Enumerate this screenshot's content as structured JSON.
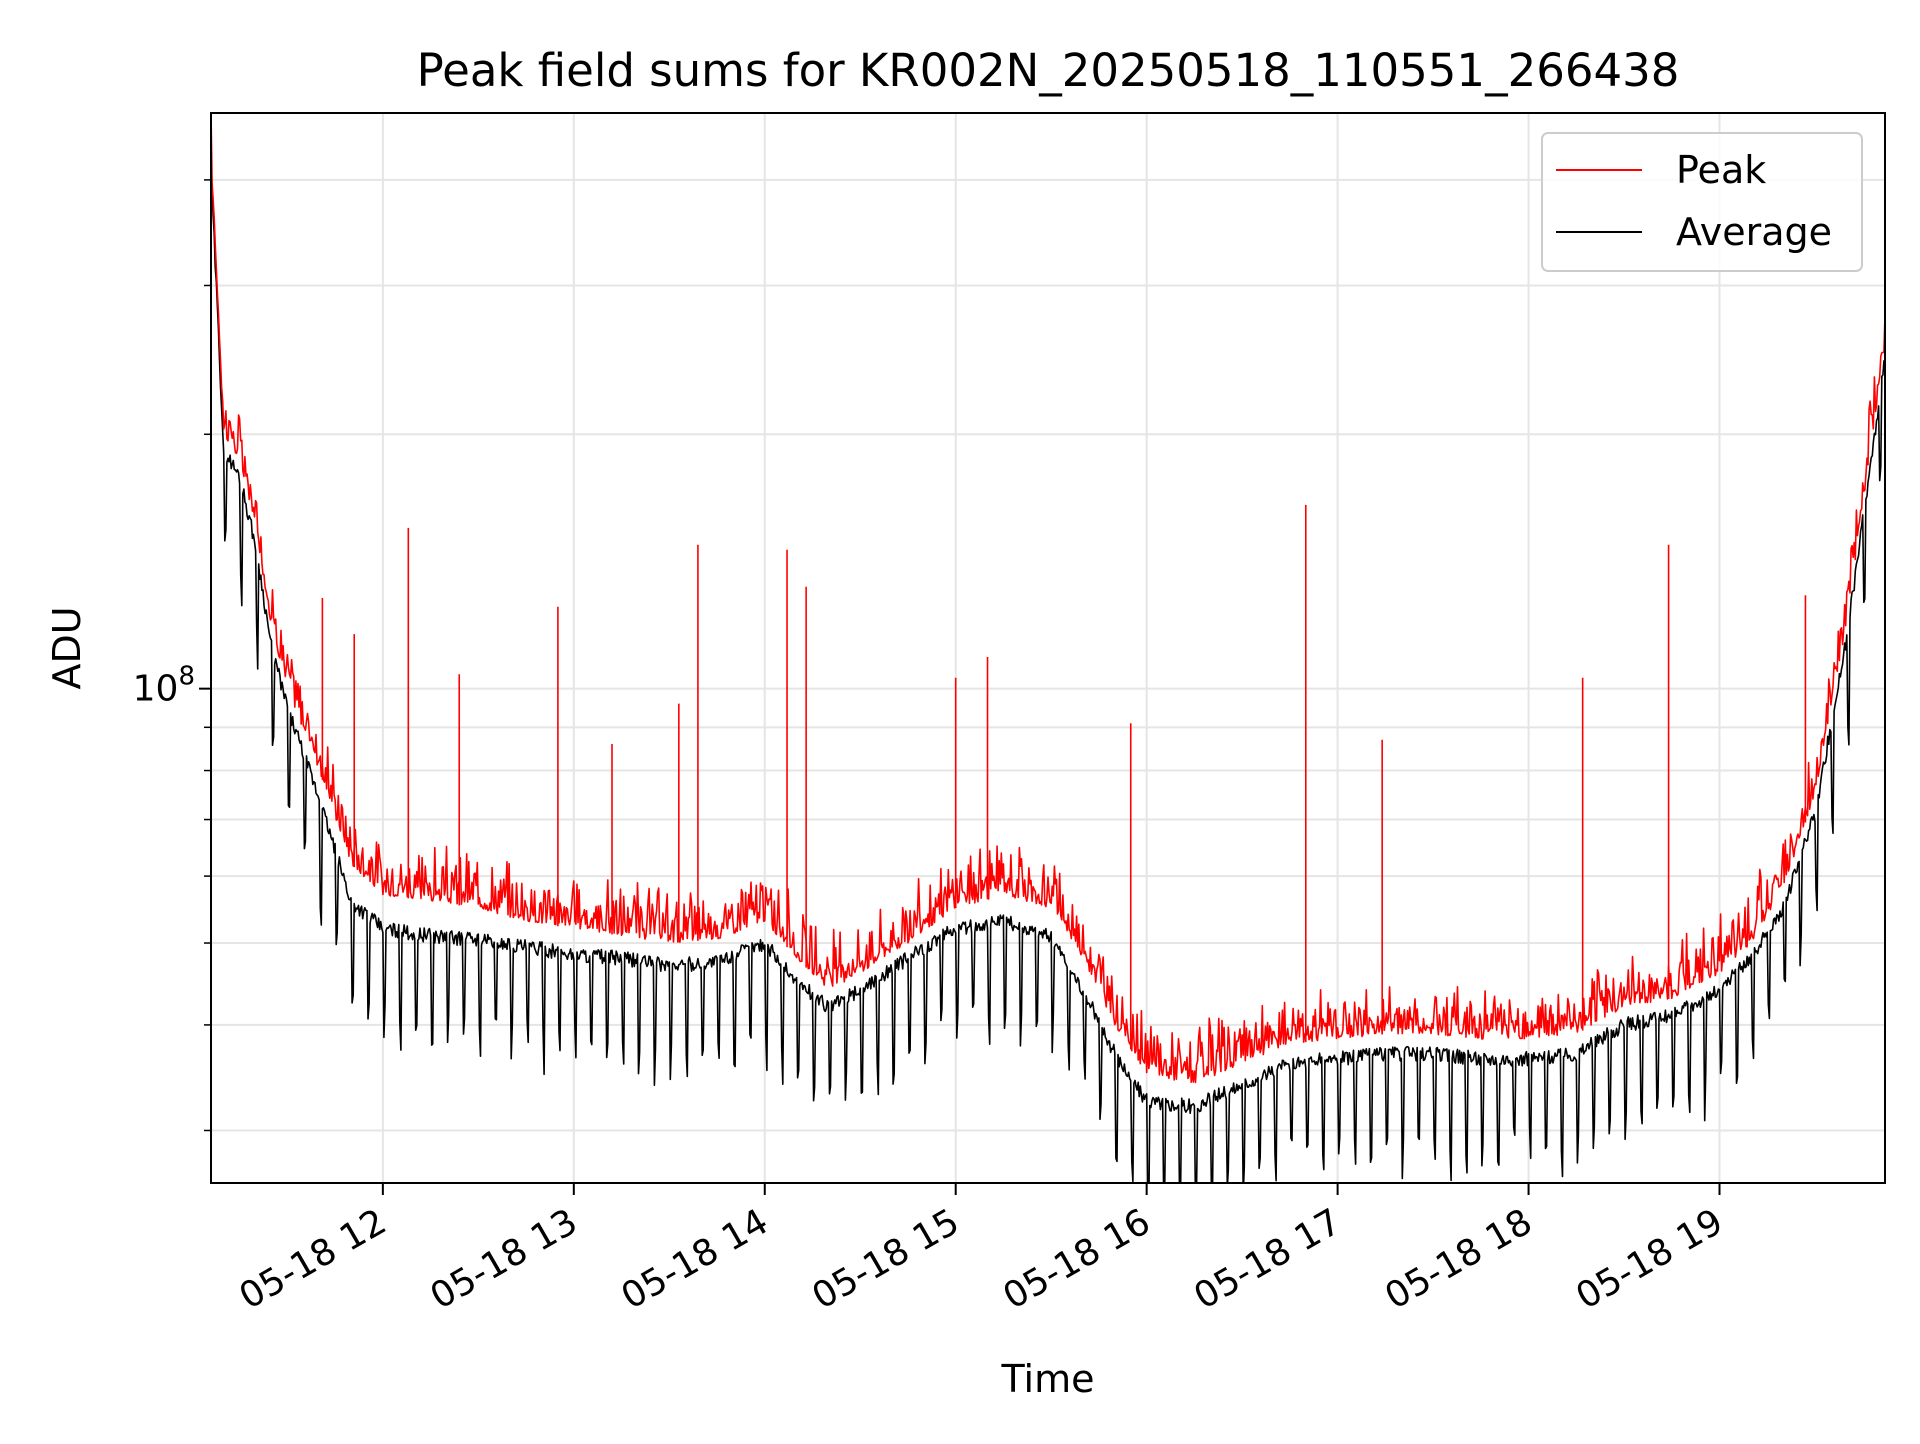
{
  "chart_data": {
    "type": "line",
    "title": "Peak field sums for KR002N_20250518_110551_266438",
    "xlabel": "Time",
    "ylabel": "ADU",
    "yscale": "log",
    "grid": true,
    "legend_position": "top-right",
    "ylim": [
      26000000,
      480000000
    ],
    "xlim": [
      "2025-05-18 11:06:00",
      "2025-05-18 19:52:00"
    ],
    "x_ticks": [
      "2025-05-18 12:00",
      "2025-05-18 13:00",
      "2025-05-18 14:00",
      "2025-05-18 15:00",
      "2025-05-18 16:00",
      "2025-05-18 17:00",
      "2025-05-18 18:00",
      "2025-05-18 19:00"
    ],
    "x_tick_labels": [
      "05-18 12",
      "05-18 13",
      "05-18 14",
      "05-18 15",
      "05-18 16",
      "05-18 17",
      "05-18 18",
      "05-18 19"
    ],
    "y_major_ticks": [
      100000000
    ],
    "y_major_tick_labels": [
      {
        "base": "10",
        "exp": "8"
      }
    ],
    "y_minor_ticks": [
      30000000,
      40000000,
      50000000,
      60000000,
      70000000,
      80000000,
      90000000,
      200000000,
      300000000,
      400000000
    ],
    "series": [
      {
        "name": "Peak",
        "color": "#ff0000",
        "x": [
          "2025-05-18 11:06",
          "2025-05-18 11:10",
          "2025-05-18 11:15",
          "2025-05-18 11:20",
          "2025-05-18 11:25",
          "2025-05-18 11:30",
          "2025-05-18 11:40",
          "2025-05-18 11:50",
          "2025-05-18 12:00",
          "2025-05-18 12:15",
          "2025-05-18 12:30",
          "2025-05-18 12:45",
          "2025-05-18 13:00",
          "2025-05-18 13:15",
          "2025-05-18 13:30",
          "2025-05-18 13:45",
          "2025-05-18 14:00",
          "2025-05-18 14:10",
          "2025-05-18 14:20",
          "2025-05-18 14:30",
          "2025-05-18 14:45",
          "2025-05-18 15:00",
          "2025-05-18 15:15",
          "2025-05-18 15:30",
          "2025-05-18 15:40",
          "2025-05-18 15:50",
          "2025-05-18 16:00",
          "2025-05-18 16:15",
          "2025-05-18 16:30",
          "2025-05-18 16:45",
          "2025-05-18 17:00",
          "2025-05-18 17:15",
          "2025-05-18 17:30",
          "2025-05-18 17:45",
          "2025-05-18 18:00",
          "2025-05-18 18:15",
          "2025-05-18 18:30",
          "2025-05-18 18:45",
          "2025-05-18 19:00",
          "2025-05-18 19:10",
          "2025-05-18 19:20",
          "2025-05-18 19:30",
          "2025-05-18 19:40",
          "2025-05-18 19:52"
        ],
        "values": [
          420000000,
          200000000,
          185000000,
          155000000,
          118000000,
          100000000,
          80000000,
          62000000,
          57000000,
          56000000,
          55000000,
          53000000,
          52000000,
          51000000,
          50000000,
          50500000,
          53000000,
          48000000,
          44000000,
          46000000,
          50000000,
          55000000,
          57000000,
          55000000,
          48000000,
          40000000,
          35000000,
          34000000,
          36000000,
          38000000,
          38500000,
          39000000,
          39000000,
          38500000,
          38500000,
          39000000,
          42000000,
          43000000,
          46000000,
          50000000,
          58000000,
          75000000,
          120000000,
          255000000
        ],
        "spikes": [
          {
            "x": "2025-05-18 11:41",
            "value": 128000000
          },
          {
            "x": "2025-05-18 11:51",
            "value": 116000000
          },
          {
            "x": "2025-05-18 12:08",
            "value": 155000000
          },
          {
            "x": "2025-05-18 12:24",
            "value": 104000000
          },
          {
            "x": "2025-05-18 12:55",
            "value": 125000000
          },
          {
            "x": "2025-05-18 13:12",
            "value": 86000000
          },
          {
            "x": "2025-05-18 13:33",
            "value": 96000000
          },
          {
            "x": "2025-05-18 13:39",
            "value": 148000000
          },
          {
            "x": "2025-05-18 14:07",
            "value": 146000000
          },
          {
            "x": "2025-05-18 14:13",
            "value": 132000000
          },
          {
            "x": "2025-05-18 15:00",
            "value": 103000000
          },
          {
            "x": "2025-05-18 15:10",
            "value": 109000000
          },
          {
            "x": "2025-05-18 15:55",
            "value": 91000000
          },
          {
            "x": "2025-05-18 16:50",
            "value": 165000000
          },
          {
            "x": "2025-05-18 17:14",
            "value": 87000000
          },
          {
            "x": "2025-05-18 18:17",
            "value": 103000000
          },
          {
            "x": "2025-05-18 18:44",
            "value": 148000000
          },
          {
            "x": "2025-05-18 19:27",
            "value": 129000000
          },
          {
            "x": "2025-05-18 19:52",
            "value": 272000000
          }
        ]
      },
      {
        "name": "Average",
        "color": "#000000",
        "x": [
          "2025-05-18 11:06",
          "2025-05-18 11:10",
          "2025-05-18 11:15",
          "2025-05-18 11:20",
          "2025-05-18 11:25",
          "2025-05-18 11:30",
          "2025-05-18 11:40",
          "2025-05-18 11:50",
          "2025-05-18 12:00",
          "2025-05-18 12:15",
          "2025-05-18 12:30",
          "2025-05-18 12:45",
          "2025-05-18 13:00",
          "2025-05-18 13:15",
          "2025-05-18 13:30",
          "2025-05-18 13:45",
          "2025-05-18 14:00",
          "2025-05-18 14:10",
          "2025-05-18 14:20",
          "2025-05-18 14:30",
          "2025-05-18 14:45",
          "2025-05-18 15:00",
          "2025-05-18 15:15",
          "2025-05-18 15:30",
          "2025-05-18 15:40",
          "2025-05-18 15:50",
          "2025-05-18 16:00",
          "2025-05-18 16:15",
          "2025-05-18 16:30",
          "2025-05-18 16:45",
          "2025-05-18 17:00",
          "2025-05-18 17:15",
          "2025-05-18 17:30",
          "2025-05-18 17:45",
          "2025-05-18 18:00",
          "2025-05-18 18:15",
          "2025-05-18 18:30",
          "2025-05-18 18:45",
          "2025-05-18 19:00",
          "2025-05-18 19:10",
          "2025-05-18 19:20",
          "2025-05-18 19:30",
          "2025-05-18 19:40",
          "2025-05-18 19:52"
        ],
        "values": [
          410000000,
          192000000,
          178000000,
          148000000,
          112000000,
          95000000,
          74000000,
          56000000,
          52000000,
          51000000,
          50500000,
          49500000,
          48500000,
          48000000,
          47000000,
          47500000,
          50000000,
          45000000,
          42000000,
          44000000,
          48000000,
          52000000,
          53000000,
          51000000,
          44000000,
          37000000,
          32500000,
          32000000,
          34000000,
          36000000,
          36500000,
          37000000,
          37000000,
          36500000,
          36500000,
          37000000,
          40000000,
          41000000,
          44000000,
          48000000,
          55000000,
          71000000,
          115000000,
          245000000
        ]
      }
    ]
  }
}
